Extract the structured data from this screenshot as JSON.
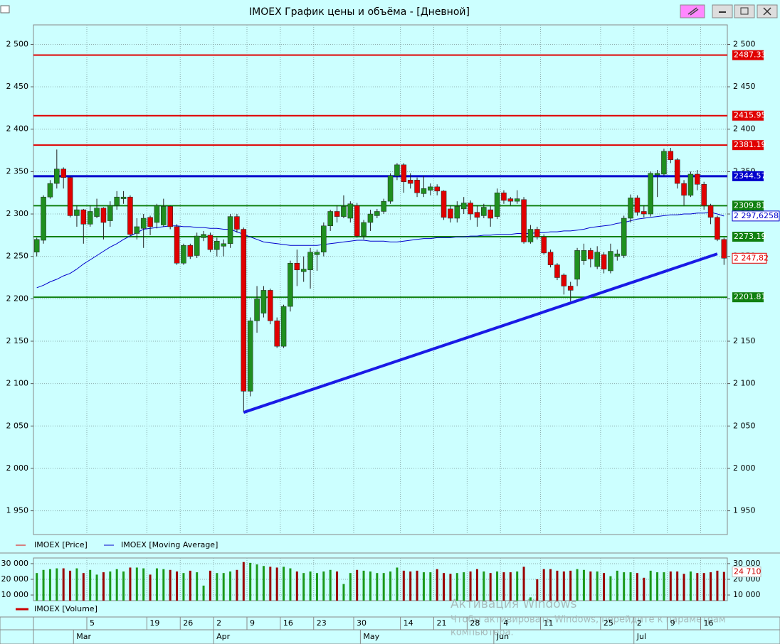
{
  "window": {
    "title": "IMOEX График цены и объёма - [Дневной]"
  },
  "chart_data": [
    {
      "type": "candlestick",
      "categories": [
        null,
        null,
        null,
        null,
        null,
        null,
        null,
        null,
        "5",
        null,
        null,
        null,
        null,
        null,
        null,
        null,
        null,
        "19",
        null,
        null,
        null,
        null,
        "26",
        null,
        null,
        null,
        null,
        "2",
        null,
        null,
        null,
        null,
        "9",
        null,
        null,
        null,
        null,
        "16",
        null,
        null,
        null,
        null,
        "23",
        null,
        null,
        null,
        null,
        null,
        "30",
        null,
        null,
        null,
        null,
        null,
        null,
        "14",
        null,
        null,
        null,
        null,
        "21",
        null,
        null,
        null,
        null,
        "28",
        null,
        null,
        null,
        null,
        "4",
        null,
        null,
        null,
        null,
        null,
        "11",
        null,
        null,
        null,
        null,
        null,
        null,
        null,
        null,
        "25",
        null,
        null,
        null,
        null,
        "2",
        null,
        null,
        null,
        null,
        "9",
        null,
        null,
        null,
        null,
        "16",
        null,
        null,
        null
      ],
      "months": [
        null,
        null,
        null,
        null,
        null,
        null,
        "Mar",
        null,
        null,
        null,
        null,
        null,
        null,
        null,
        null,
        null,
        null,
        null,
        null,
        null,
        null,
        null,
        null,
        null,
        null,
        null,
        null,
        "Apr",
        null,
        null,
        null,
        null,
        null,
        null,
        null,
        null,
        null,
        null,
        null,
        null,
        null,
        null,
        null,
        null,
        null,
        null,
        null,
        null,
        null,
        "May",
        null,
        null,
        null,
        null,
        null,
        null,
        null,
        null,
        null,
        null,
        null,
        null,
        null,
        null,
        null,
        null,
        null,
        null,
        null,
        "Jun",
        null,
        null,
        null,
        null,
        null,
        null,
        null,
        null,
        null,
        null,
        null,
        null,
        null,
        null,
        null,
        null,
        null,
        null,
        null,
        null,
        "Jul",
        null,
        null,
        null,
        null,
        null,
        null,
        null,
        null,
        null,
        null,
        null,
        null,
        null
      ],
      "series": [
        {
          "name": "IMOEX [Price]",
          "color": "#e00000",
          "up_color": "#1f8f1f",
          "down_color": "#e00000",
          "last_label": "2 247,82",
          "open": [
            2255,
            2269,
            2320,
            2336,
            2353,
            2343,
            2298,
            2305,
            2288,
            2297,
            2307,
            2292,
            2310,
            2318,
            2320,
            2277,
            2283,
            2296,
            2290,
            2287,
            2309,
            2285,
            2242,
            2263,
            2251,
            2272,
            2275,
            2258,
            2262,
            2265,
            2297,
            2282,
            2091,
            2174,
            2183,
            2210,
            2174,
            2144,
            2191,
            2242,
            2232,
            2234,
            2252,
            2255,
            2286,
            2303,
            2297,
            2295,
            2310,
            2274,
            2290,
            2298,
            2303,
            2315,
            2345,
            2358,
            2340,
            2340,
            2324,
            2328,
            2332,
            2327,
            2306,
            2295,
            2306,
            2313,
            2302,
            2298,
            2305,
            2297,
            2325,
            2318,
            2315,
            2317,
            2267,
            2282,
            2273,
            2255,
            2240,
            2228,
            2215,
            2223,
            2245,
            2257,
            2238,
            2252,
            2233,
            2250,
            2251,
            2295,
            2319,
            2303,
            2300,
            2346,
            2347,
            2374,
            2364,
            2336,
            2322,
            2347,
            2335,
            2310,
            2296,
            2270
          ],
          "high": [
            2272,
            2322,
            2340,
            2376,
            2355,
            2345,
            2310,
            2306,
            2310,
            2318,
            2308,
            2315,
            2327,
            2327,
            2322,
            2295,
            2300,
            2298,
            2312,
            2318,
            2310,
            2288,
            2265,
            2265,
            2278,
            2280,
            2278,
            2272,
            2270,
            2300,
            2300,
            2284,
            2178,
            2215,
            2215,
            2212,
            2178,
            2193,
            2245,
            2258,
            2250,
            2260,
            2258,
            2290,
            2305,
            2310,
            2322,
            2315,
            2313,
            2293,
            2305,
            2306,
            2318,
            2348,
            2360,
            2360,
            2348,
            2343,
            2345,
            2336,
            2335,
            2328,
            2310,
            2315,
            2320,
            2316,
            2310,
            2312,
            2310,
            2330,
            2328,
            2320,
            2328,
            2320,
            2287,
            2285,
            2276,
            2258,
            2242,
            2230,
            2220,
            2260,
            2265,
            2260,
            2262,
            2255,
            2265,
            2258,
            2298,
            2323,
            2322,
            2310,
            2350,
            2352,
            2377,
            2378,
            2366,
            2340,
            2350,
            2352,
            2338,
            2312,
            2298,
            2272
          ],
          "low": [
            2250,
            2265,
            2318,
            2330,
            2330,
            2296,
            2285,
            2265,
            2285,
            2295,
            2270,
            2285,
            2305,
            2312,
            2274,
            2270,
            2260,
            2275,
            2283,
            2285,
            2282,
            2240,
            2240,
            2247,
            2248,
            2268,
            2255,
            2250,
            2250,
            2260,
            2278,
            2066,
            2085,
            2160,
            2178,
            2170,
            2142,
            2142,
            2185,
            2215,
            2220,
            2212,
            2233,
            2250,
            2280,
            2290,
            2295,
            2290,
            2272,
            2270,
            2280,
            2295,
            2300,
            2312,
            2340,
            2325,
            2330,
            2320,
            2320,
            2322,
            2322,
            2293,
            2290,
            2290,
            2300,
            2293,
            2285,
            2295,
            2285,
            2294,
            2312,
            2310,
            2312,
            2265,
            2265,
            2270,
            2252,
            2237,
            2222,
            2205,
            2197,
            2215,
            2240,
            2237,
            2235,
            2230,
            2230,
            2245,
            2248,
            2290,
            2298,
            2296,
            2297,
            2320,
            2345,
            2360,
            2330,
            2310,
            2320,
            2328,
            2305,
            2288,
            2268,
            2240
          ],
          "close": [
            2270,
            2320,
            2336,
            2353,
            2343,
            2298,
            2305,
            2288,
            2303,
            2307,
            2290,
            2310,
            2320,
            2320,
            2276,
            2285,
            2295,
            2285,
            2310,
            2309,
            2285,
            2242,
            2263,
            2250,
            2274,
            2276,
            2258,
            2268,
            2265,
            2297,
            2282,
            2091,
            2174,
            2200,
            2210,
            2174,
            2144,
            2191,
            2242,
            2234,
            2235,
            2255,
            2255,
            2286,
            2303,
            2297,
            2309,
            2312,
            2274,
            2290,
            2300,
            2303,
            2315,
            2345,
            2358,
            2338,
            2336,
            2325,
            2330,
            2332,
            2327,
            2296,
            2295,
            2309,
            2313,
            2300,
            2296,
            2308,
            2295,
            2325,
            2316,
            2315,
            2318,
            2267,
            2282,
            2273,
            2254,
            2240,
            2225,
            2215,
            2210,
            2257,
            2257,
            2247,
            2255,
            2235,
            2256,
            2253,
            2295,
            2319,
            2302,
            2300,
            2348,
            2348,
            2374,
            2364,
            2336,
            2322,
            2347,
            2335,
            2310,
            2296,
            2270,
            2247.82
          ]
        },
        {
          "name": "IMOEX [Moving Average]",
          "color": "#0000cc",
          "last_label": "2 297,6258",
          "values": [
            2213,
            2216,
            2220,
            2223,
            2227,
            2230,
            2235,
            2241,
            2246,
            2251,
            2256,
            2261,
            2265,
            2270,
            2274,
            2278,
            2282,
            2283,
            2284,
            2285,
            2286,
            2286,
            2285,
            2285,
            2284,
            2284,
            2283,
            2283,
            2282,
            2282,
            2279,
            2276,
            2273,
            2270,
            2267,
            2266,
            2265,
            2264,
            2263,
            2263,
            2263,
            2263,
            2263,
            2264,
            2265,
            2266,
            2267,
            2268,
            2269,
            2269,
            2268,
            2268,
            2268,
            2267,
            2267,
            2268,
            2269,
            2270,
            2271,
            2271,
            2272,
            2272,
            2272,
            2273,
            2273,
            2274,
            2274,
            2275,
            2275,
            2276,
            2276,
            2276,
            2277,
            2277,
            2277,
            2278,
            2278,
            2279,
            2279,
            2280,
            2280,
            2281,
            2282,
            2284,
            2285,
            2286,
            2287,
            2289,
            2290,
            2292,
            2294,
            2295,
            2296,
            2297,
            2298,
            2299,
            2299,
            2300,
            2300,
            2301,
            2301,
            2302,
            2300,
            2297.6258
          ]
        }
      ],
      "levels": [
        {
          "value": 2487.33,
          "color": "#e00000"
        },
        {
          "value": 2415.95,
          "color": "#e00000"
        },
        {
          "value": 2381.19,
          "color": "#e00000"
        },
        {
          "value": 2344.57,
          "color": "#0000cc"
        },
        {
          "value": 2309.81,
          "color": "#108010"
        },
        {
          "value": 2273.19,
          "color": "#108010"
        },
        {
          "value": 2201.81,
          "color": "#108010"
        }
      ],
      "trendlines": [
        {
          "x": [
            31,
            102
          ],
          "y": [
            2066,
            2253
          ],
          "color": "#1a1ae6"
        }
      ],
      "ylim": [
        1922,
        2523
      ],
      "yticks": [
        {
          "value": 1950,
          "label": "1 950"
        },
        {
          "value": 2000,
          "label": "2 000"
        },
        {
          "value": 2050,
          "label": "2 050"
        },
        {
          "value": 2100,
          "label": "2 100"
        },
        {
          "value": 2150,
          "label": "2 150"
        },
        {
          "value": 2200,
          "label": "2 200"
        },
        {
          "value": 2250,
          "label": "2 250"
        },
        {
          "value": 2300,
          "label": "2 300"
        },
        {
          "value": 2350,
          "label": "2 350"
        },
        {
          "value": 2400,
          "label": "2 400"
        },
        {
          "value": 2450,
          "label": "2 450"
        },
        {
          "value": 2500,
          "label": "2 500"
        }
      ],
      "grid": true
    },
    {
      "type": "bar",
      "series": [
        {
          "name": "IMOEX [Volume]",
          "color": "#cc0000",
          "up_color": "#1a991a",
          "down_color": "#990000",
          "last_label": "24 710",
          "values": [
            24000,
            26000,
            26500,
            27000,
            27000,
            25500,
            27000,
            24000,
            26000,
            23000,
            24500,
            25000,
            26500,
            25000,
            27500,
            27500,
            27000,
            23000,
            27000,
            26500,
            26000,
            25000,
            24000,
            25500,
            24500,
            16000,
            25500,
            24000,
            24000,
            25000,
            26000,
            31000,
            30500,
            29500,
            28500,
            28000,
            27500,
            28000,
            27000,
            25000,
            24000,
            25000,
            24000,
            25000,
            26000,
            25000,
            17000,
            24000,
            26000,
            25500,
            25000,
            24000,
            24000,
            25000,
            27500,
            25500,
            25000,
            25500,
            24500,
            24500,
            26500,
            24000,
            23500,
            24000,
            24500,
            25000,
            26500,
            25000,
            24000,
            25000,
            24500,
            24500,
            25000,
            28000,
            8500,
            20000,
            26500,
            26500,
            25500,
            25000,
            25500,
            26500,
            26000,
            25000,
            25000,
            24000,
            22000,
            25500,
            24500,
            24500,
            24000,
            21000,
            25500,
            24500,
            24500,
            25000,
            25000,
            23500,
            25000,
            24000,
            24000,
            24500,
            25500,
            24710
          ]
        }
      ],
      "ylim": [
        6400,
        33600
      ],
      "yticks": [
        {
          "value": 10000,
          "label": "10 000"
        },
        {
          "value": 20000,
          "label": "20 000"
        },
        {
          "value": 30000,
          "label": "30 000"
        }
      ],
      "grid": true
    }
  ],
  "watermark": {
    "title": "Активация Windows",
    "lines": [
      "Чтобы активировать Windows, перейдите к параметрам",
      "компьютера."
    ]
  }
}
